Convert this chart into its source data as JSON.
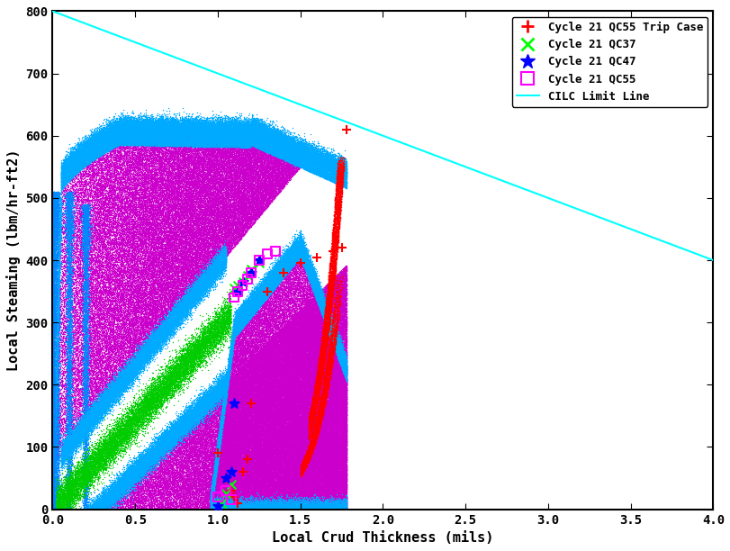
{
  "xlabel": "Local Crud Thickness (mils)",
  "ylabel": "Local Steaming (lbm/hr-ft2)",
  "xlim": [
    0,
    4
  ],
  "ylim": [
    0,
    800
  ],
  "xticks": [
    0,
    0.5,
    1,
    1.5,
    2,
    2.5,
    3,
    3.5,
    4
  ],
  "yticks": [
    0,
    100,
    200,
    300,
    400,
    500,
    600,
    700,
    800
  ],
  "background_color": "#ffffff",
  "border_color": "#000000",
  "cilc_line": {
    "x": [
      0,
      4
    ],
    "y": [
      800,
      400
    ],
    "color": "#00ffff",
    "linewidth": 1.5
  },
  "font_family": "monospace",
  "font_size": 10,
  "legend_font_size": 9,
  "seed": 42,
  "qc55t_x": [
    1.0,
    1.05,
    1.08,
    1.1,
    1.12,
    1.15,
    1.18,
    1.2,
    1.3,
    1.4,
    1.5,
    1.6,
    1.7,
    1.75,
    1.78
  ],
  "qc55t_y": [
    90,
    50,
    30,
    20,
    10,
    60,
    80,
    170,
    350,
    380,
    395,
    405,
    415,
    420,
    610
  ],
  "qc37_x": [
    1.02,
    1.05,
    1.08,
    1.1,
    1.12,
    1.15,
    1.18,
    1.2,
    1.25
  ],
  "qc37_y": [
    10,
    25,
    40,
    355,
    360,
    365,
    375,
    385,
    395
  ],
  "qc47_x": [
    1.0,
    1.05,
    1.08,
    1.1,
    1.12,
    1.15,
    1.2,
    1.25
  ],
  "qc47_y": [
    5,
    50,
    60,
    170,
    350,
    365,
    380,
    400
  ],
  "qc55_x": [
    1.0,
    1.05,
    1.08,
    1.1,
    1.12,
    1.15,
    1.18,
    1.2,
    1.25,
    1.3,
    1.35
  ],
  "qc55_y": [
    20,
    30,
    15,
    340,
    350,
    360,
    370,
    380,
    400,
    410,
    415
  ]
}
